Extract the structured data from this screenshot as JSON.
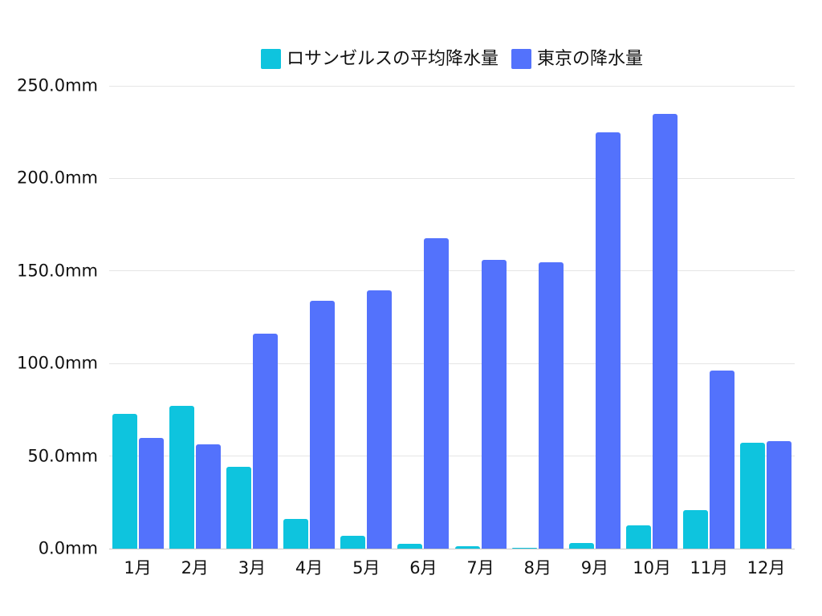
{
  "chart_data": {
    "type": "bar",
    "title": "",
    "xlabel": "",
    "ylabel": "",
    "unit": "mm",
    "categories": [
      "1月",
      "2月",
      "3月",
      "4月",
      "5月",
      "6月",
      "7月",
      "8月",
      "9月",
      "10月",
      "11月",
      "12月"
    ],
    "series": [
      {
        "name": "ロサンゼルスの平均降水量",
        "color": "#0ec4de",
        "values": [
          73,
          77,
          44,
          16,
          7,
          2.5,
          1.5,
          0.5,
          3,
          12.5,
          21,
          57
        ]
      },
      {
        "name": "東京の降水量",
        "color": "#5372fc",
        "values": [
          59.7,
          56.5,
          116.0,
          133.7,
          139.7,
          167.8,
          156.2,
          154.7,
          224.9,
          234.8,
          96.3,
          57.9
        ]
      }
    ],
    "ylim": [
      0,
      250
    ],
    "yticks": [
      {
        "value": 0,
        "label": "0.0mm"
      },
      {
        "value": 50,
        "label": "50.0mm"
      },
      {
        "value": 100,
        "label": "100.0mm"
      },
      {
        "value": 150,
        "label": "150.0mm"
      },
      {
        "value": 200,
        "label": "200.0mm"
      },
      {
        "value": 250,
        "label": "250.0mm"
      }
    ],
    "grid": true,
    "legend_position": "top-center",
    "colors": {
      "background": "#ffffff",
      "gridline": "#e5e5e5",
      "axis_line": "#c9c9c9",
      "text": "#111111"
    }
  }
}
